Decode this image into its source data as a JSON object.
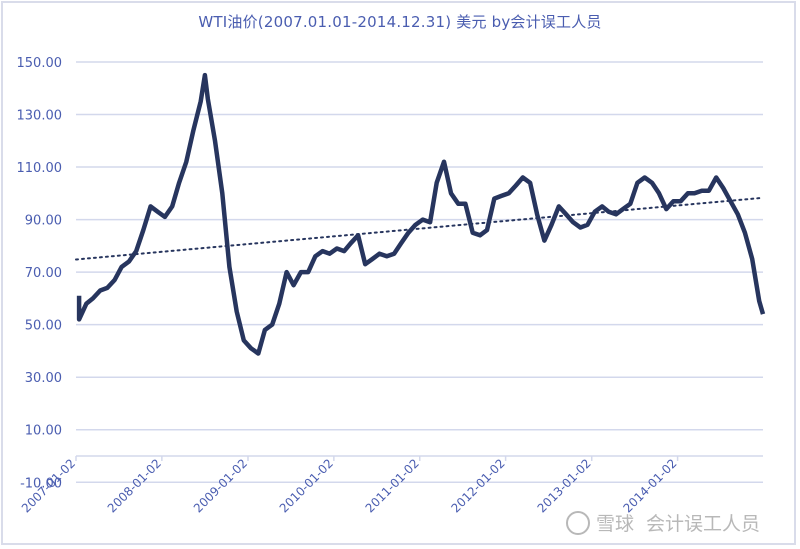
{
  "chart_data": {
    "type": "line",
    "title": "WTI油价(2007.01.01-2014.12.31) 美元  by会计误工人员",
    "xlabel": "",
    "ylabel": "",
    "ylim": [
      -10,
      150
    ],
    "y_ticks": [
      "150.00",
      "130.00",
      "110.00",
      "90.00",
      "70.00",
      "50.00",
      "30.00",
      "10.00",
      "-10.00"
    ],
    "y_tick_values": [
      150,
      130,
      110,
      90,
      70,
      50,
      30,
      10,
      -10
    ],
    "x_ticks": [
      "2007-01-02",
      "2008-01-02",
      "2009-01-02",
      "2010-01-02",
      "2011-01-02",
      "2012-01-02",
      "2013-01-02",
      "2014-01-02"
    ],
    "grid": true,
    "legend": null,
    "series": [
      {
        "name": "WTI",
        "color": "#27355e",
        "x": [
          "2007-01",
          "2007-01-15",
          "2007-02",
          "2007-03",
          "2007-04",
          "2007-05",
          "2007-06",
          "2007-07",
          "2007-08",
          "2007-09",
          "2007-10",
          "2007-11",
          "2007-12",
          "2008-01",
          "2008-02",
          "2008-03",
          "2008-04",
          "2008-05",
          "2008-06",
          "2008-07-03",
          "2008-07-15",
          "2008-08",
          "2008-09",
          "2008-10",
          "2008-11",
          "2008-12",
          "2009-01",
          "2009-02",
          "2009-03",
          "2009-04",
          "2009-05",
          "2009-06",
          "2009-07",
          "2009-08",
          "2009-09",
          "2009-10",
          "2009-11",
          "2009-12",
          "2010-01",
          "2010-02",
          "2010-03",
          "2010-04",
          "2010-05",
          "2010-06",
          "2010-07",
          "2010-08",
          "2010-09",
          "2010-10",
          "2010-11",
          "2010-12",
          "2011-01",
          "2011-02",
          "2011-03",
          "2011-04",
          "2011-05",
          "2011-06",
          "2011-07",
          "2011-08",
          "2011-09",
          "2011-10",
          "2011-11",
          "2011-12",
          "2012-01",
          "2012-02",
          "2012-03",
          "2012-04",
          "2012-05",
          "2012-06",
          "2012-07",
          "2012-08",
          "2012-09",
          "2012-10",
          "2012-11",
          "2012-12",
          "2013-01",
          "2013-02",
          "2013-03",
          "2013-04",
          "2013-05",
          "2013-06",
          "2013-07",
          "2013-08",
          "2013-09",
          "2013-10",
          "2013-11",
          "2013-12",
          "2014-01",
          "2014-02",
          "2014-03",
          "2014-04",
          "2014-05",
          "2014-06",
          "2014-07",
          "2014-08",
          "2014-09",
          "2014-10",
          "2014-11",
          "2014-12",
          "2014-12-31"
        ],
        "values": [
          61,
          52,
          58,
          60,
          63,
          64,
          67,
          72,
          74,
          78,
          86,
          95,
          93,
          91,
          95,
          104,
          112,
          124,
          135,
          145,
          136,
          120,
          100,
          72,
          55,
          44,
          41,
          39,
          48,
          50,
          58,
          70,
          65,
          70,
          70,
          76,
          78,
          77,
          79,
          78,
          81,
          84,
          73,
          75,
          77,
          76,
          77,
          81,
          85,
          88,
          90,
          89,
          104,
          112,
          100,
          96,
          96,
          85,
          84,
          86,
          98,
          99,
          100,
          103,
          106,
          104,
          92,
          82,
          88,
          95,
          92,
          89,
          87,
          88,
          93,
          95,
          93,
          92,
          94,
          96,
          104,
          106,
          104,
          100,
          94,
          97,
          97,
          100,
          100,
          101,
          101,
          106,
          102,
          97,
          92,
          85,
          75,
          59,
          54
        ]
      },
      {
        "name": "Linear trend",
        "style": "dotted",
        "color": "#27355e",
        "x": [
          "2007-01-02",
          "2014-12-31"
        ],
        "values": [
          74.8,
          98.3
        ]
      }
    ]
  },
  "watermark": {
    "logo_text": "雪球",
    "author": "会计误工人员"
  }
}
